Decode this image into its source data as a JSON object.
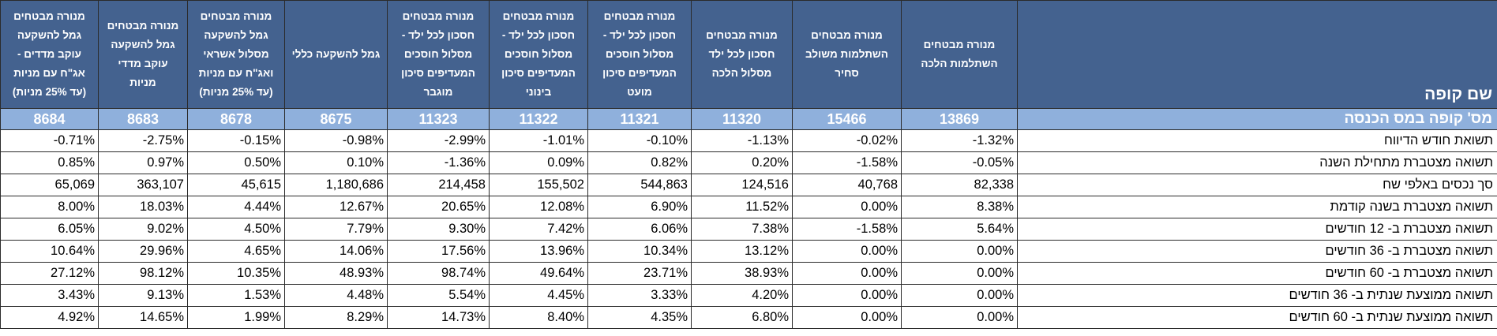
{
  "table": {
    "title": "שם קופה",
    "code_label": "מס' קופה במס הכנסה",
    "columns": [
      {
        "name": "מנורה מבטחים גמל להשקעה עוקב מדדים - אג\"ח עם מניות (עד 25% מניות)",
        "code": "8684"
      },
      {
        "name": "מנורה מבטחים גמל להשקעה עוקב מדדי מניות",
        "code": "8683"
      },
      {
        "name": "מנורה מבטחים גמל להשקעה מסלול אשראי ואג\"ח עם מניות (עד 25% מניות)",
        "code": "8678"
      },
      {
        "name": "גמל להשקעה כללי",
        "code": "8675"
      },
      {
        "name": "מנורה מבטחים חסכון לכל ילד - מסלול חוסכים המעדיפים סיכון מוגבר",
        "code": "11323"
      },
      {
        "name": "מנורה מבטחים חסכון לכל ילד - מסלול חוסכים המעדיפים סיכון בינוני",
        "code": "11322"
      },
      {
        "name": "מנורה מבטחים חסכון לכל ילד - מסלול חוסכים המעדיפים סיכון מועט",
        "code": "11321"
      },
      {
        "name": "מנורה מבטחים חסכון לכל ילד מסלול הלכה",
        "code": "11320"
      },
      {
        "name": "מנורה מבטחים השתלמות משולב סחיר",
        "code": "15466"
      },
      {
        "name": "מנורה מבטחים השתלמות הלכה",
        "code": "13869"
      }
    ],
    "rows": [
      {
        "label": "תשואת חודש הדיווח",
        "values": [
          "-0.71%",
          "-2.75%",
          "-0.15%",
          "-0.98%",
          "-2.99%",
          "-1.01%",
          "-0.10%",
          "-1.13%",
          "-0.02%",
          "-1.32%"
        ]
      },
      {
        "label": "תשואה מצטברת מתחילת השנה",
        "values": [
          "0.85%",
          "0.97%",
          "0.50%",
          "0.10%",
          "-1.36%",
          "0.09%",
          "0.82%",
          "0.20%",
          "-1.58%",
          "-0.05%"
        ]
      },
      {
        "label": "סך נכסים באלפי שח",
        "values": [
          "65,069",
          "363,107",
          "45,615",
          "1,180,686",
          "214,458",
          "155,502",
          "544,863",
          "124,516",
          "40,768",
          "82,338"
        ]
      },
      {
        "label": "תשואה מצטברת בשנה קודמת",
        "values": [
          "8.00%",
          "18.03%",
          "4.44%",
          "12.67%",
          "20.65%",
          "12.08%",
          "6.90%",
          "11.52%",
          "0.00%",
          "8.38%"
        ]
      },
      {
        "label": "תשואה מצטברת ב- 12 חודשים",
        "values": [
          "6.05%",
          "9.02%",
          "4.50%",
          "7.79%",
          "9.30%",
          "7.42%",
          "6.06%",
          "7.38%",
          "-1.58%",
          "5.64%"
        ]
      },
      {
        "label": "תשואה מצטברת ב- 36 חודשים",
        "values": [
          "10.64%",
          "29.96%",
          "4.65%",
          "14.06%",
          "17.56%",
          "13.96%",
          "10.34%",
          "13.12%",
          "0.00%",
          "0.00%"
        ]
      },
      {
        "label": "תשואה מצטברת ב- 60 חודשים",
        "values": [
          "27.12%",
          "98.12%",
          "10.35%",
          "48.93%",
          "98.74%",
          "49.64%",
          "23.71%",
          "38.93%",
          "0.00%",
          "0.00%"
        ]
      },
      {
        "label": "תשואה ממוצעת שנתית ב- 36 חודשים",
        "values": [
          "3.43%",
          "9.13%",
          "1.53%",
          "4.48%",
          "5.54%",
          "4.45%",
          "3.33%",
          "4.20%",
          "0.00%",
          "0.00%"
        ]
      },
      {
        "label": "תשואה ממוצעת שנתית ב- 60 חודשים",
        "values": [
          "4.92%",
          "14.65%",
          "1.99%",
          "8.29%",
          "14.73%",
          "8.40%",
          "4.35%",
          "6.80%",
          "0.00%",
          "0.00%"
        ]
      }
    ]
  }
}
